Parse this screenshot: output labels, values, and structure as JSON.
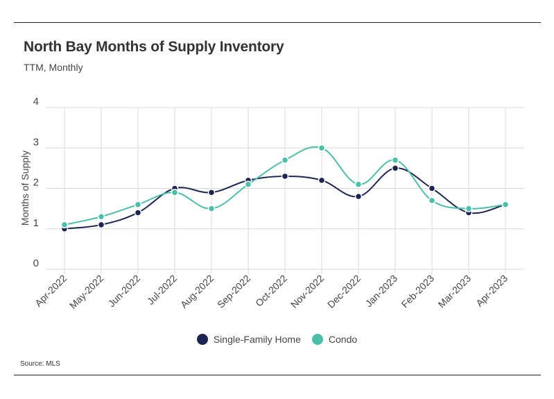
{
  "header": {
    "title": "North Bay Months of Supply Inventory",
    "subtitle": "TTM, Monthly"
  },
  "footer": {
    "source": "Source:  MLS"
  },
  "chart_data": {
    "type": "line",
    "title": "North Bay Months of Supply Inventory",
    "subtitle": "TTM, Monthly",
    "xlabel": "",
    "ylabel": "Months of Supply",
    "ylim": [
      0,
      4
    ],
    "yticks": [
      "0",
      "1",
      "2",
      "3",
      "4"
    ],
    "grid": true,
    "legend_position": "bottom",
    "categories": [
      "Apr-2022",
      "May-2022",
      "Jun-2022",
      "Jul-2022",
      "Aug-2022",
      "Sep-2022",
      "Oct-2022",
      "Nov-2022",
      "Dec-2022",
      "Jan-2023",
      "Feb-2023",
      "Mar-2023",
      "Apr-2023"
    ],
    "series": [
      {
        "name": "Single-Family Home",
        "color": "#1c2551",
        "values": [
          1.0,
          1.1,
          1.4,
          2.0,
          1.9,
          2.2,
          2.3,
          2.2,
          1.8,
          2.5,
          2.0,
          1.4,
          1.6
        ]
      },
      {
        "name": "Condo",
        "color": "#4bbfa9",
        "values": [
          1.1,
          1.3,
          1.6,
          1.9,
          1.5,
          2.1,
          2.7,
          3.0,
          2.1,
          2.7,
          1.7,
          1.5,
          1.6
        ]
      }
    ]
  }
}
